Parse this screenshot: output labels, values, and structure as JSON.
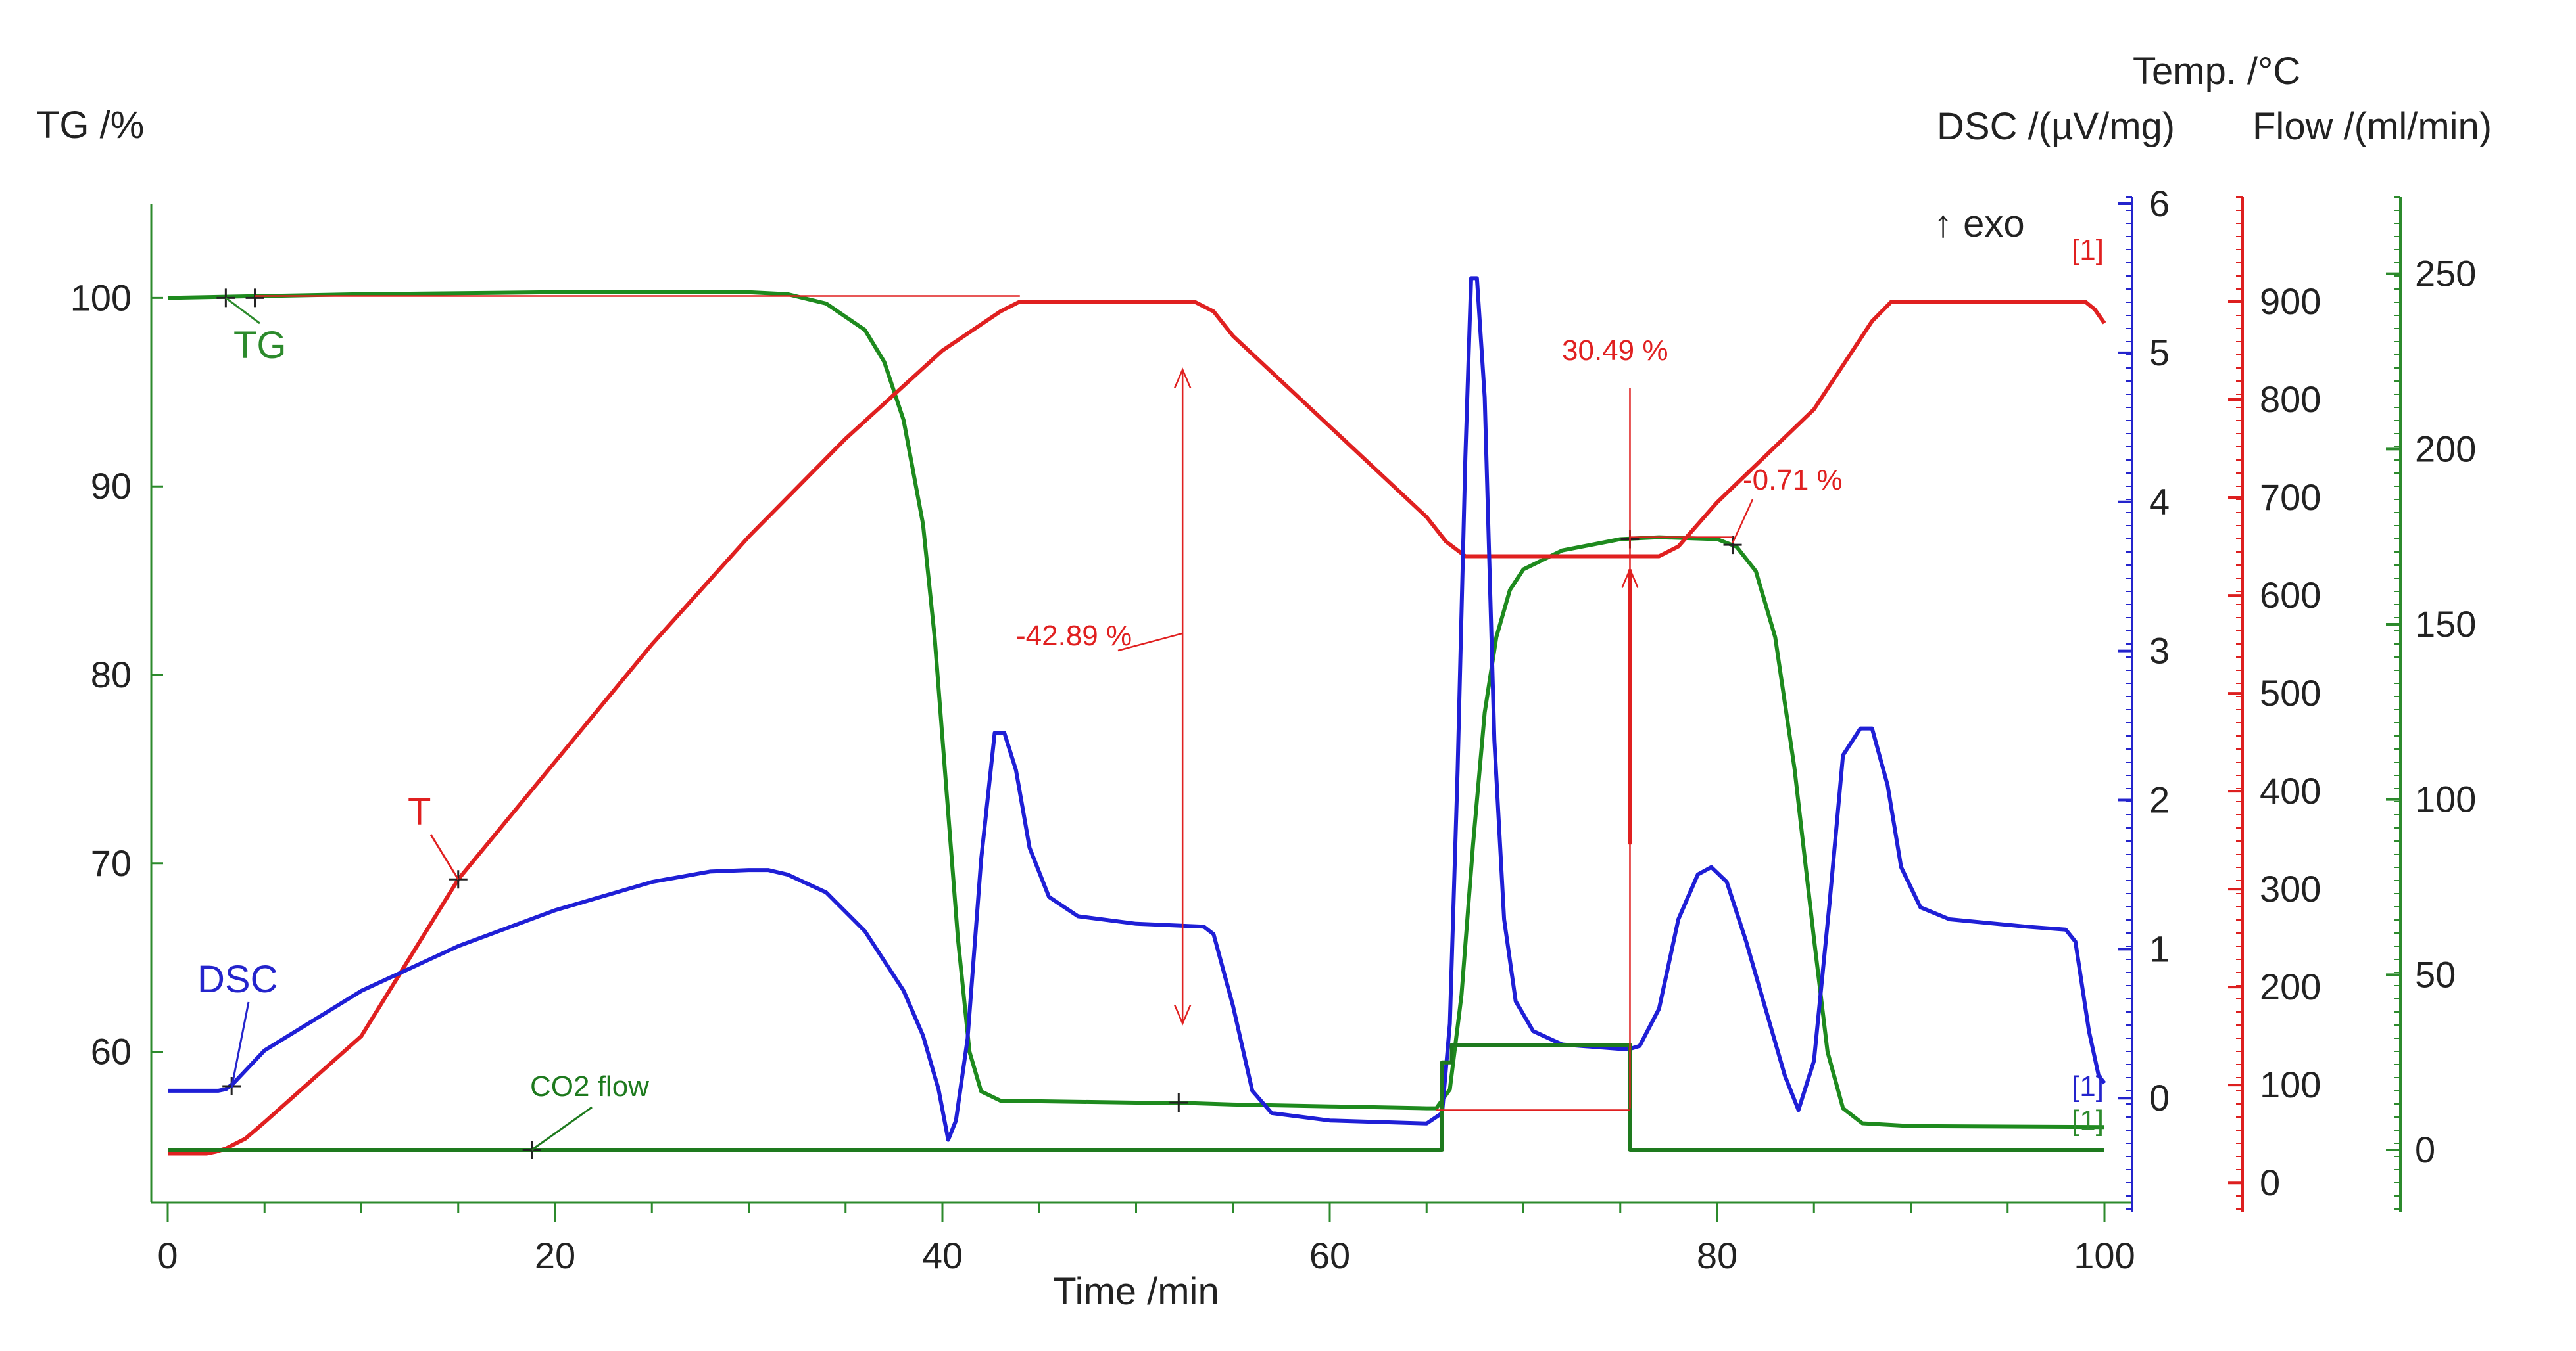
{
  "chart_data": {
    "type": "line",
    "title": "",
    "x_axis": {
      "label": "Time /min",
      "min": 0,
      "max": 100,
      "ticks": [
        0,
        20,
        40,
        60,
        80,
        100
      ]
    },
    "axes": {
      "tg": {
        "label": "TG /%",
        "min": 52,
        "max": 105,
        "ticks": [
          60,
          70,
          80,
          90,
          100
        ],
        "color": "#404040"
      },
      "dsc": {
        "label": "DSC /(µV/mg)",
        "extra_label": "↑ exo",
        "min": -0.7,
        "max": 6,
        "ticks": [
          0,
          1,
          2,
          3,
          4,
          5,
          6
        ],
        "color": "#2424cc"
      },
      "temp": {
        "label": "Temp. /°C",
        "min": -20,
        "max": 1000,
        "ticks": [
          0,
          100,
          200,
          300,
          400,
          500,
          600,
          700,
          800,
          900
        ],
        "color": "#dd1f1f"
      },
      "flow": {
        "label": "Flow /(ml/min)",
        "min": -15,
        "max": 270,
        "ticks": [
          0,
          50,
          100,
          150,
          200,
          250
        ],
        "color": "#2c8a2c"
      }
    },
    "series": [
      {
        "name": "TG",
        "axis": "tg",
        "color": "#1e8a1e",
        "points": [
          [
            0,
            100
          ],
          [
            5,
            100.1
          ],
          [
            10,
            100.2
          ],
          [
            20,
            100.3
          ],
          [
            30,
            100.3
          ],
          [
            32,
            100.2
          ],
          [
            34,
            99.7
          ],
          [
            36,
            98.3
          ],
          [
            37,
            96.6
          ],
          [
            38,
            93.5
          ],
          [
            39,
            88
          ],
          [
            39.6,
            82
          ],
          [
            40.2,
            74
          ],
          [
            40.8,
            66
          ],
          [
            41.4,
            60
          ],
          [
            42,
            57.9
          ],
          [
            43,
            57.4
          ],
          [
            50,
            57.3
          ],
          [
            52,
            57.3
          ],
          [
            55,
            57.2
          ],
          [
            60,
            57.1
          ],
          [
            65,
            57
          ],
          [
            65.5,
            57
          ],
          [
            66.2,
            58
          ],
          [
            66.8,
            63
          ],
          [
            67.4,
            71
          ],
          [
            68,
            78
          ],
          [
            68.6,
            82
          ],
          [
            69.3,
            84.5
          ],
          [
            70,
            85.6
          ],
          [
            72,
            86.6
          ],
          [
            75,
            87.2
          ],
          [
            77,
            87.3
          ],
          [
            80,
            87.2
          ],
          [
            81,
            86.8
          ],
          [
            82,
            85.5
          ],
          [
            83,
            82
          ],
          [
            84,
            75
          ],
          [
            85,
            66
          ],
          [
            85.7,
            60
          ],
          [
            86.5,
            57
          ],
          [
            87.5,
            56.2
          ],
          [
            90,
            56.05
          ],
          [
            100,
            56
          ]
        ]
      },
      {
        "name": "T",
        "axis": "temp",
        "color": "#e02020",
        "points": [
          [
            0,
            30
          ],
          [
            2,
            30
          ],
          [
            2.5,
            32
          ],
          [
            3,
            35
          ],
          [
            4,
            45
          ],
          [
            5,
            62
          ],
          [
            10,
            150
          ],
          [
            15,
            310
          ],
          [
            20,
            430
          ],
          [
            25,
            550
          ],
          [
            30,
            660
          ],
          [
            35,
            760
          ],
          [
            40,
            850
          ],
          [
            43,
            890
          ],
          [
            44,
            900
          ],
          [
            53,
            900
          ],
          [
            54,
            890
          ],
          [
            55,
            865
          ],
          [
            65,
            680
          ],
          [
            66,
            655
          ],
          [
            67,
            640
          ],
          [
            73,
            640
          ],
          [
            75,
            640
          ],
          [
            77,
            640
          ],
          [
            78,
            650
          ],
          [
            80,
            695
          ],
          [
            85,
            790
          ],
          [
            88,
            880
          ],
          [
            89,
            900
          ],
          [
            99,
            900
          ],
          [
            99.5,
            892
          ],
          [
            100,
            878
          ]
        ]
      },
      {
        "name": "DSC",
        "axis": "dsc",
        "color": "#1f1fd6",
        "points": [
          [
            0,
            0.05
          ],
          [
            2.6,
            0.05
          ],
          [
            3,
            0.06
          ],
          [
            3.4,
            0.1
          ],
          [
            5,
            0.32
          ],
          [
            10,
            0.72
          ],
          [
            15,
            1.02
          ],
          [
            20,
            1.26
          ],
          [
            25,
            1.45
          ],
          [
            28,
            1.52
          ],
          [
            30,
            1.53
          ],
          [
            31,
            1.53
          ],
          [
            32,
            1.5
          ],
          [
            34,
            1.38
          ],
          [
            36,
            1.12
          ],
          [
            38,
            0.72
          ],
          [
            39,
            0.42
          ],
          [
            39.8,
            0.06
          ],
          [
            40.3,
            -0.28
          ],
          [
            40.7,
            -0.15
          ],
          [
            41.3,
            0.4
          ],
          [
            42,
            1.6
          ],
          [
            42.7,
            2.45
          ],
          [
            43.2,
            2.45
          ],
          [
            43.8,
            2.2
          ],
          [
            44.5,
            1.68
          ],
          [
            45.5,
            1.35
          ],
          [
            47,
            1.22
          ],
          [
            50,
            1.17
          ],
          [
            53.5,
            1.15
          ],
          [
            54,
            1.1
          ],
          [
            55,
            0.62
          ],
          [
            56,
            0.05
          ],
          [
            57,
            -0.1
          ],
          [
            60,
            -0.15
          ],
          [
            65,
            -0.17
          ],
          [
            65.8,
            -0.1
          ],
          [
            66.2,
            0.5
          ],
          [
            66.6,
            2.2
          ],
          [
            67,
            4.3
          ],
          [
            67.3,
            5.5
          ],
          [
            67.6,
            5.5
          ],
          [
            68,
            4.7
          ],
          [
            68.5,
            2.4
          ],
          [
            69,
            1.2
          ],
          [
            69.6,
            0.65
          ],
          [
            70.5,
            0.45
          ],
          [
            72,
            0.36
          ],
          [
            75,
            0.33
          ],
          [
            75.5,
            0.33
          ],
          [
            76,
            0.35
          ],
          [
            77,
            0.6
          ],
          [
            78,
            1.2
          ],
          [
            79,
            1.5
          ],
          [
            79.7,
            1.55
          ],
          [
            80.5,
            1.45
          ],
          [
            81.5,
            1.05
          ],
          [
            82.5,
            0.6
          ],
          [
            83.5,
            0.15
          ],
          [
            84.2,
            -0.08
          ],
          [
            85,
            0.25
          ],
          [
            85.8,
            1.3
          ],
          [
            86.5,
            2.3
          ],
          [
            87.4,
            2.48
          ],
          [
            88,
            2.48
          ],
          [
            88.8,
            2.1
          ],
          [
            89.5,
            1.55
          ],
          [
            90.5,
            1.28
          ],
          [
            92,
            1.2
          ],
          [
            96,
            1.15
          ],
          [
            98,
            1.13
          ],
          [
            98.5,
            1.05
          ],
          [
            99.2,
            0.45
          ],
          [
            99.7,
            0.15
          ],
          [
            100,
            0.1
          ]
        ]
      },
      {
        "name": "CO2 flow",
        "axis": "flow",
        "color": "#1e7a1e",
        "points": [
          [
            0,
            0
          ],
          [
            65.8,
            0
          ],
          [
            65.8,
            25
          ],
          [
            66.3,
            25
          ],
          [
            66.3,
            30
          ],
          [
            75.5,
            30
          ],
          [
            75.5,
            0
          ],
          [
            100,
            0
          ]
        ]
      }
    ],
    "series_labels": [
      {
        "text": "TG",
        "color": "#2c8a2c",
        "x": 5.0,
        "axis": "tg",
        "y": 96.5
      },
      {
        "text": "T",
        "color": "#e02020",
        "x": 13.0,
        "axis": "tg",
        "y": 72.0
      },
      {
        "text": "DSC",
        "color": "#2424cc",
        "x": 2.0,
        "axis": "tg",
        "y": 62.0
      },
      {
        "text": "CO2 flow",
        "color": "#1e7a1e",
        "x": 22.0,
        "axis": "tg",
        "y": 58.0
      }
    ],
    "annotations": [
      {
        "text": "-42.89 %",
        "color": "#e02020"
      },
      {
        "text": "30.49 %",
        "color": "#e02020"
      },
      {
        "text": "-0.71 %",
        "color": "#e02020"
      },
      {
        "text": "[1]",
        "color": "#e02020"
      },
      {
        "text": "[1]",
        "color": "#2424cc"
      },
      {
        "text": "[1]",
        "color": "#2c8a2c"
      }
    ]
  }
}
